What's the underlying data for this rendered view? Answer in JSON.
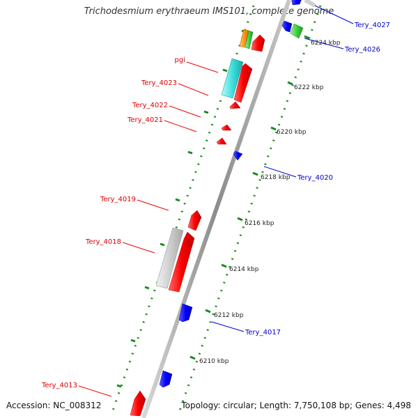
{
  "title": "Trichodesmium erythraeum IMS101, complete genome",
  "footer": {
    "accession": "Accession: NC_008312",
    "topology": "Topology: circular; Length: 7,750,108 bp; Genes: 4,498"
  },
  "colors": {
    "forward_gene": "#ff0000",
    "reverse_gene": "#0000ff",
    "tick": "#1a8a1a",
    "axis": "#9a9a9a",
    "label_forward": "#dd0000",
    "label_reverse": "#0000cc"
  },
  "kbp_labels": [
    "6224 kbp",
    "6222 kbp",
    "6220 kbp",
    "6218 kbp",
    "6216 kbp",
    "6214 kbp",
    "6212 kbp",
    "6210 kbp"
  ],
  "gene_labels_left": [
    "pgi",
    "Tery_4023",
    "Tery_4022",
    "Tery_4021",
    "Tery_4019",
    "Tery_4018",
    "Tery_4013"
  ],
  "gene_labels_right": [
    "Tery_4027",
    "Tery_4026",
    "Tery_4020",
    "Tery_4017"
  ]
}
